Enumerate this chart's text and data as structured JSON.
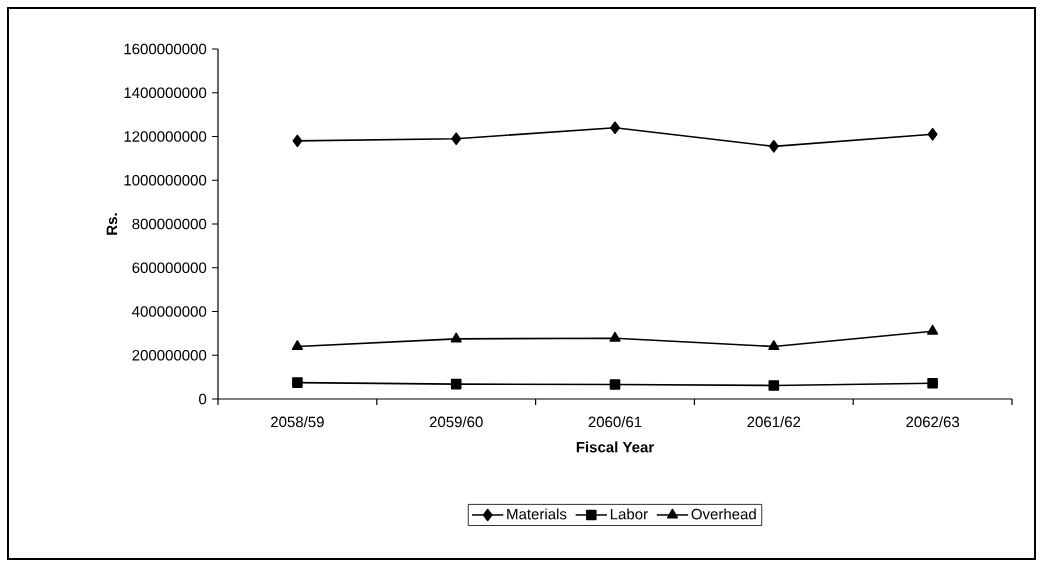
{
  "chart_data": {
    "type": "line",
    "xlabel": "Fiscal Year",
    "ylabel": "Rs.",
    "categories": [
      "2058/59",
      "2059/60",
      "2060/61",
      "2061/62",
      "2062/63"
    ],
    "series": [
      {
        "name": "Materials",
        "color": "#000000",
        "marker": "diamond",
        "values": [
          1180000000,
          1190000000,
          1240000000,
          1155000000,
          1210000000
        ]
      },
      {
        "name": "Labor",
        "color": "#000000",
        "marker": "square",
        "values": [
          75000000,
          68000000,
          66000000,
          62000000,
          72000000
        ]
      },
      {
        "name": "Overhead",
        "color": "#000000",
        "marker": "triangle",
        "values": [
          240000000,
          275000000,
          278000000,
          240000000,
          310000000
        ]
      }
    ],
    "ylim": [
      0,
      1600000000
    ],
    "yticks": [
      0,
      200000000,
      400000000,
      600000000,
      800000000,
      1000000000,
      1200000000,
      1400000000,
      1600000000
    ],
    "grid": false,
    "legend": "bottom",
    "line_style": "solid"
  }
}
